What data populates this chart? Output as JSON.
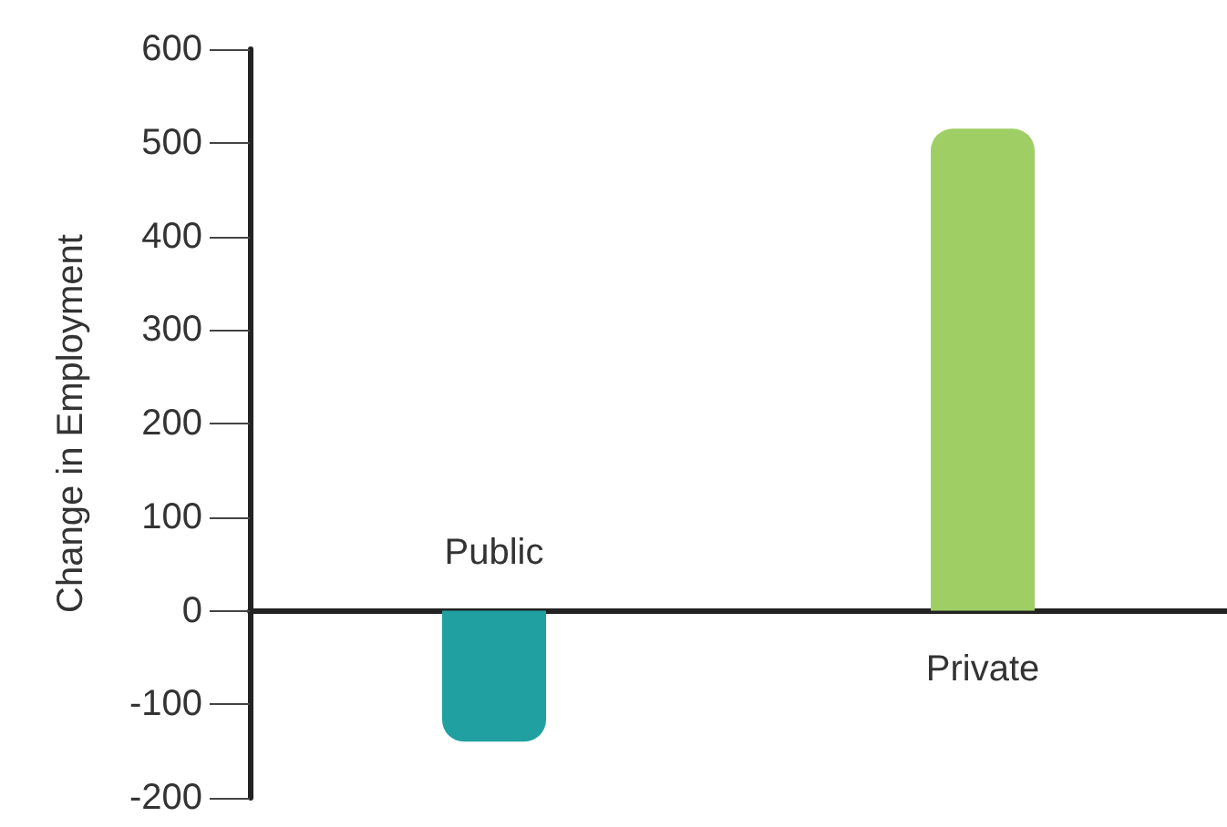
{
  "chart_data": {
    "type": "bar",
    "ylabel": "Change in Employment",
    "categories": [
      "Public",
      "Private"
    ],
    "colors": [
      "#20a0a0",
      "#9fcf64"
    ],
    "values": [
      -140,
      515
    ],
    "ylim": [
      -200,
      600
    ],
    "yticks": [
      -200,
      -100,
      0,
      100,
      200,
      300,
      400,
      500,
      600
    ]
  }
}
